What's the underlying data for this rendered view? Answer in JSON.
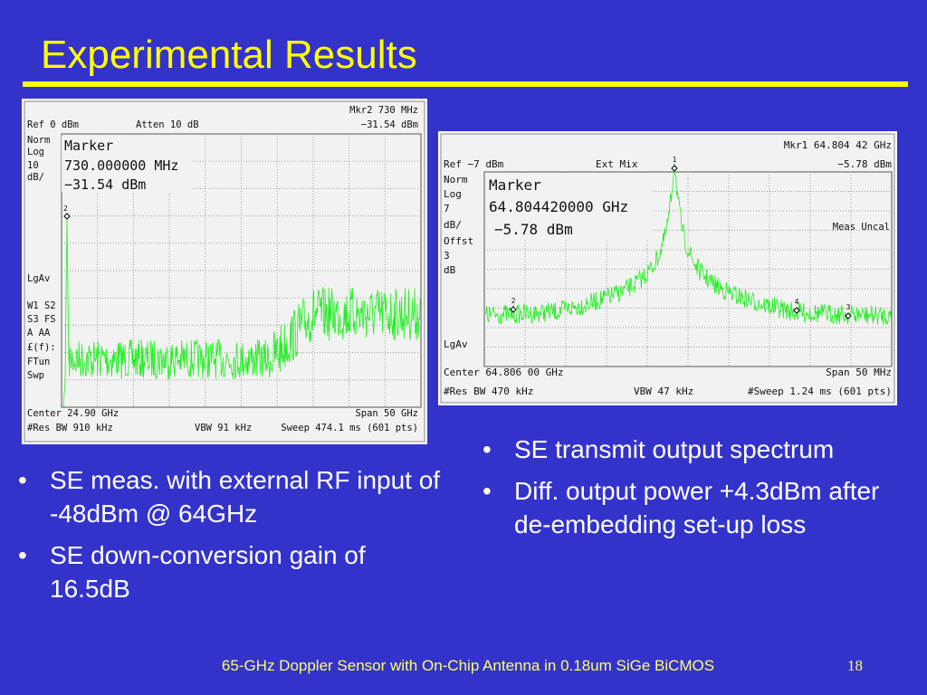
{
  "title": "Experimental Results",
  "left_screen": {
    "top": [
      "Mkr2  730 MHz",
      "Ref 0 dBm",
      "Atten 10 dB",
      "−31.54 dBm"
    ],
    "side": [
      "Norm",
      "Log",
      "10",
      "dB/",
      "LgAv",
      "W1  S2",
      "S3  FS",
      "A   AA",
      "£(f):",
      "FTun",
      "Swp"
    ],
    "marker_box": [
      "Marker",
      "730.000000 MHz",
      "−31.54 dBm"
    ],
    "marker_labels": [
      "2"
    ],
    "bottom": [
      "Center 24.90 GHz",
      "Span 50 GHz",
      "#Res BW 910 kHz",
      "VBW 91 kHz",
      "Sweep 474.1 ms (601 pts)"
    ]
  },
  "right_screen": {
    "top": [
      "Mkr1  64.804 42 GHz",
      "Ref −7 dBm",
      "Ext Mix",
      "−5.78 dBm"
    ],
    "side": [
      "Norm",
      "Log",
      "7",
      "dB/",
      "Offst",
      "3",
      "dB",
      "LgAv"
    ],
    "note": "Meas Uncal",
    "marker_box": [
      "Marker",
      "64.804420000 GHz",
      "−5.78 dBm"
    ],
    "marker_labels": [
      "1",
      "2",
      "4",
      "3"
    ],
    "bottom": [
      "Center 64.806 00 GHz",
      "Span 50 MHz",
      "#Res BW 470 kHz",
      "VBW 47 kHz",
      "#Sweep 1.24 ms (601 pts)"
    ]
  },
  "left_bullets": [
    "SE meas. with external RF input of -48dBm @ 64GHz",
    "SE down-conversion gain of 16.5dB"
  ],
  "right_bullets": [
    "SE transmit output spectrum",
    "Diff. output power +4.3dBm after de-embedding set-up loss"
  ],
  "footer": {
    "text": "65-GHz Doppler Sensor with On-Chip Antenna in 0.18um SiGe BiCMOS",
    "page": "18"
  }
}
